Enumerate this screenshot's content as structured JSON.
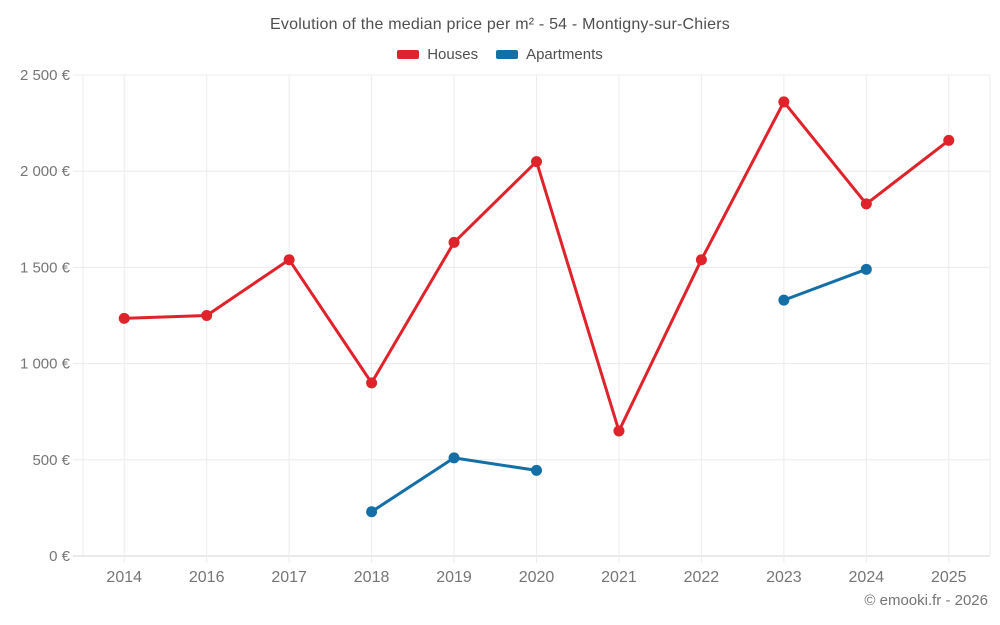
{
  "header": {
    "title": "Evolution of the median price per m² - 54 - Montigny-sur-Chiers"
  },
  "chart_data": {
    "type": "line",
    "title": "Evolution of the median price per m² - 54 - Montigny-sur-Chiers",
    "categories": [
      "2014",
      "2016",
      "2017",
      "2018",
      "2019",
      "2020",
      "2021",
      "2022",
      "2023",
      "2024",
      "2025"
    ],
    "series": [
      {
        "name": "Houses",
        "color": "#e0222b",
        "values": [
          1235,
          1250,
          1540,
          900,
          1630,
          2050,
          650,
          1540,
          2360,
          1830,
          2160
        ]
      },
      {
        "name": "Apartments",
        "color": "#136fa5",
        "values": [
          null,
          null,
          null,
          230,
          510,
          445,
          null,
          null,
          1330,
          1490,
          null
        ]
      }
    ],
    "ylim": [
      0,
      2500
    ],
    "yticks": [
      0,
      500,
      1000,
      1500,
      2000,
      2500
    ],
    "ytick_labels": [
      "0 €",
      "500 €",
      "1 000 €",
      "1 500 €",
      "2 000 €",
      "2 500 €"
    ],
    "grid": true,
    "legend_position": "top",
    "marker_radius": 5.5,
    "line_width": 3,
    "grid_color": "#ececec",
    "axis_color": "#d6d6d6",
    "tick_label_color": "#757575"
  },
  "footer": {
    "copyright": "© emooki.fr - 2026"
  }
}
